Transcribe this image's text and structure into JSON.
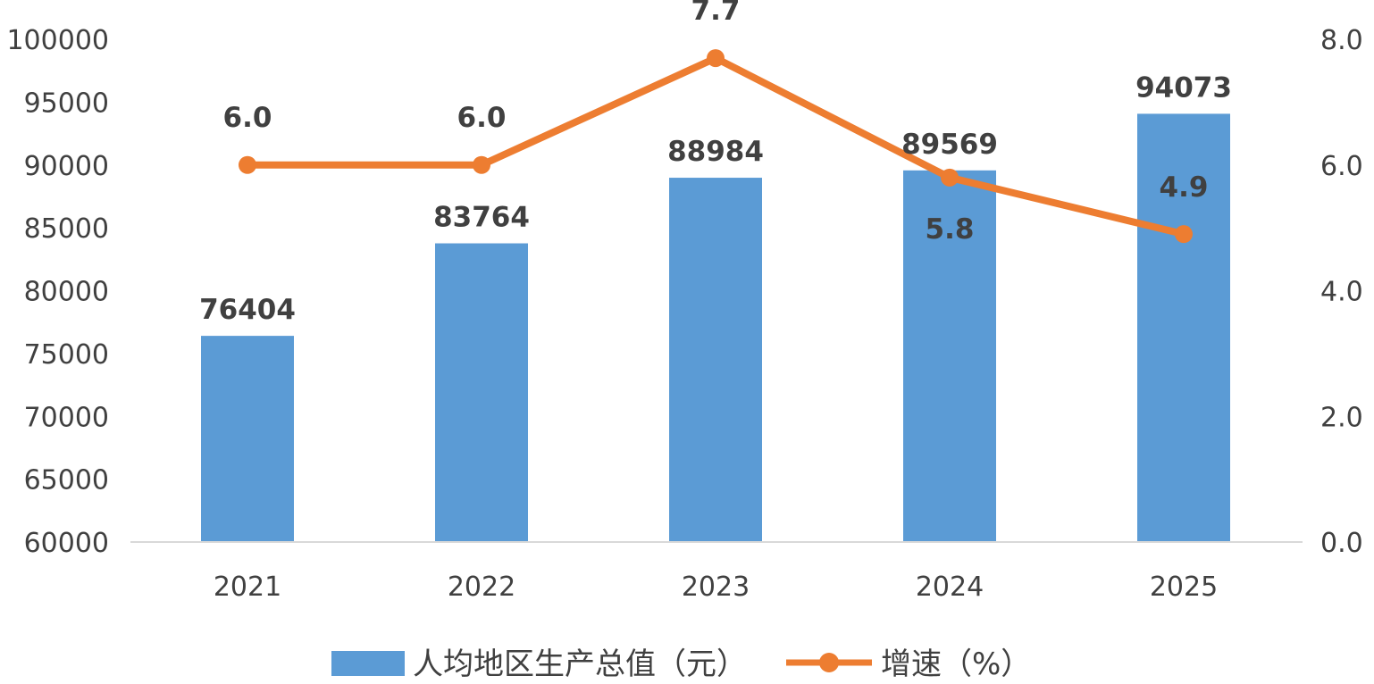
{
  "chart_data": {
    "type": "bar",
    "categories": [
      "2021",
      "2022",
      "2023",
      "2024",
      "2025"
    ],
    "series": [
      {
        "name": "人均地区生产总值（元）",
        "type": "bar",
        "axis": "left",
        "values": [
          76404,
          83764,
          88984,
          89569,
          94073
        ],
        "labels": [
          "76404",
          "83764",
          "88984",
          "89569",
          "94073"
        ],
        "color": "#5B9BD5"
      },
      {
        "name": "增速（%）",
        "type": "line",
        "axis": "right",
        "values": [
          6.0,
          6.0,
          7.7,
          5.8,
          4.9
        ],
        "labels": [
          "6.0",
          "6.0",
          "7.7",
          "5.8",
          "4.9"
        ],
        "color": "#ED7D31"
      }
    ],
    "y_left": {
      "min": 60000,
      "max": 100000,
      "ticks": [
        "60000",
        "65000",
        "70000",
        "75000",
        "80000",
        "85000",
        "90000",
        "95000",
        "100000"
      ]
    },
    "y_right": {
      "min": 0,
      "max": 8,
      "ticks": [
        "0.0",
        "2.0",
        "4.0",
        "6.0",
        "8.0"
      ]
    },
    "grid": false,
    "legend": "bottom"
  }
}
